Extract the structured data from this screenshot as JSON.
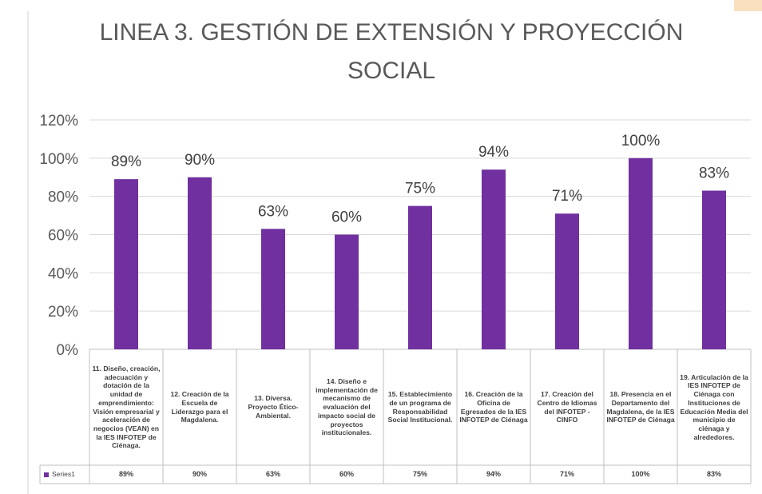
{
  "chart_data": {
    "type": "bar",
    "title": "LINEA 3.  GESTIÓN DE EXTENSIÓN Y PROYECCIÓN SOCIAL",
    "categories": [
      "11. Diseño, creación, adecuación y dotación de la unidad de emprendimiento: Visión empresarial y aceleración de negocios (VEAN) en la IES INFOTEP de Ciénaga.",
      "12. Creación de la Escuela de Liderazgo para el Magdalena.",
      "13. Diversa. Proyecto Ético-Ambiental.",
      "14. Diseño e implementación de mecanismo de evaluación del impacto social de proyectos institucionales.",
      "15. Establecimiento de un programa de Responsabilidad Social Institucional.",
      "16. Creación de la Oficina de Egresados de la IES INFOTEP de Ciénaga",
      "17. Creación del Centro de Idiomas del INFOTEP - CINFO",
      "18. Presencia en el Departamento del Magdalena, de la IES INFOTEP de Ciénaga",
      "19. Articulación de la IES INFOTEP de Ciénaga con Instituciones de Educación Media del municipio de ciénaga y alrededores."
    ],
    "series": [
      {
        "name": "Series1",
        "color": "#7030a0",
        "values": [
          89,
          90,
          63,
          60,
          75,
          94,
          71,
          100,
          83
        ],
        "value_labels": [
          "89%",
          "90%",
          "63%",
          "60%",
          "75%",
          "94%",
          "71%",
          "100%",
          "83%"
        ]
      }
    ],
    "ylim": [
      0,
      120
    ],
    "yticks": [
      {
        "value": 0,
        "label": "0%"
      },
      {
        "value": 20,
        "label": "20%"
      },
      {
        "value": 40,
        "label": "40%"
      },
      {
        "value": 60,
        "label": "60%"
      },
      {
        "value": 80,
        "label": "80%"
      },
      {
        "value": 100,
        "label": "100%"
      },
      {
        "value": 120,
        "label": "120%"
      }
    ],
    "grid": true
  }
}
